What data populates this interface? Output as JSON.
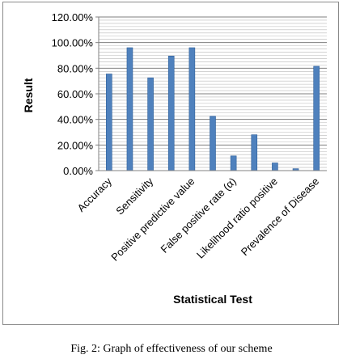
{
  "chart_data": {
    "type": "bar",
    "title": "",
    "xlabel": "Statistical Test",
    "ylabel": "Result",
    "categories": [
      "Accuracy",
      "",
      "Sensitivity",
      "",
      "Positive predictive value",
      "",
      "False positive rate (α)",
      "",
      "Likelihood ratio positive",
      "",
      "Prevalence of Disease"
    ],
    "values": [
      75.5,
      96,
      72.5,
      89.5,
      96,
      42.5,
      11.5,
      28,
      6,
      1.5,
      81.5
    ],
    "ylim": [
      0,
      120
    ],
    "yticks": [
      0,
      20,
      40,
      60,
      80,
      100,
      120
    ],
    "ytick_format": "percent_2dp",
    "grid": "horizontal",
    "legend": "none",
    "colors": {
      "bar": "#4f81bd",
      "bar_edge": "#2e5f99",
      "grid": "#7f7f7f",
      "axis": "#808080"
    }
  },
  "caption": "Fig. 2: Graph of effectiveness of our scheme"
}
